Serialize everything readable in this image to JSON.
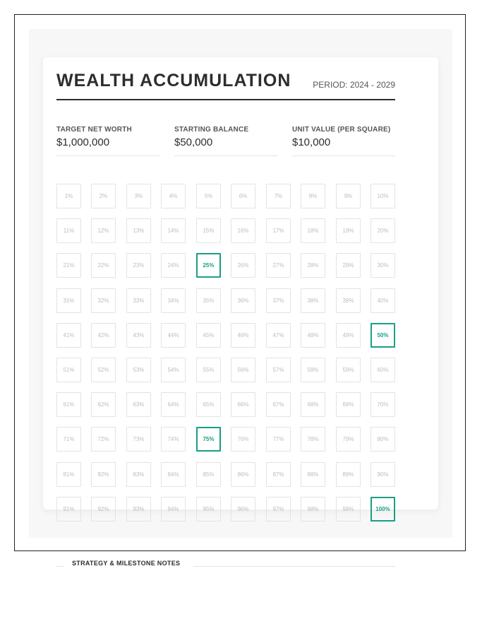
{
  "header": {
    "title": "WEALTH ACCUMULATION",
    "period": "PERIOD: 2024 - 2029"
  },
  "stats": [
    {
      "label": "TARGET NET WORTH",
      "value": "$1,000,000"
    },
    {
      "label": "STARTING BALANCE",
      "value": "$50,000"
    },
    {
      "label": "UNIT VALUE (PER SQUARE)",
      "value": "$10,000"
    }
  ],
  "grid": {
    "cells": [
      "1%",
      "2%",
      "3%",
      "4%",
      "5%",
      "6%",
      "7%",
      "8%",
      "9%",
      "10%",
      "11%",
      "12%",
      "13%",
      "14%",
      "15%",
      "16%",
      "17%",
      "18%",
      "19%",
      "20%",
      "21%",
      "22%",
      "23%",
      "24%",
      "25%",
      "26%",
      "27%",
      "28%",
      "29%",
      "30%",
      "31%",
      "32%",
      "33%",
      "34%",
      "35%",
      "36%",
      "37%",
      "38%",
      "39%",
      "40%",
      "41%",
      "42%",
      "43%",
      "44%",
      "45%",
      "46%",
      "47%",
      "48%",
      "49%",
      "50%",
      "51%",
      "52%",
      "53%",
      "54%",
      "55%",
      "56%",
      "57%",
      "58%",
      "59%",
      "60%",
      "61%",
      "62%",
      "63%",
      "64%",
      "65%",
      "66%",
      "67%",
      "68%",
      "69%",
      "70%",
      "71%",
      "72%",
      "73%",
      "74%",
      "75%",
      "76%",
      "77%",
      "78%",
      "79%",
      "80%",
      "81%",
      "82%",
      "83%",
      "84%",
      "85%",
      "86%",
      "87%",
      "88%",
      "89%",
      "90%",
      "91%",
      "92%",
      "93%",
      "94%",
      "95%",
      "96%",
      "97%",
      "98%",
      "99%",
      "100%"
    ],
    "milestones": [
      "25%",
      "50%",
      "75%",
      "100%"
    ]
  },
  "notes": {
    "title": "STRATEGY & MILESTONE NOTES"
  },
  "colors": {
    "accent": "#1a9e86",
    "text": "#2d2d2d",
    "muted": "#b8bec4"
  }
}
